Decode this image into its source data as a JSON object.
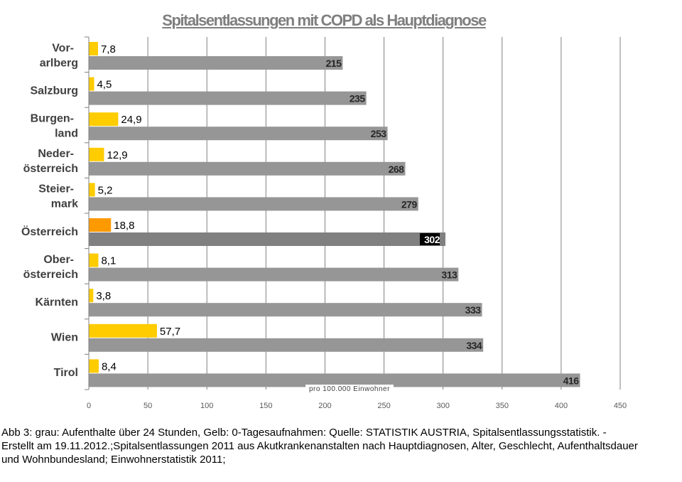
{
  "chart_data": {
    "type": "bar",
    "title": "Spitalsentlassungen mit COPD als Hauptdiagnose",
    "categories": [
      [
        "Vor-",
        "arlberg"
      ],
      [
        "Salzburg"
      ],
      [
        "Burgen-",
        "land"
      ],
      [
        "Neder-",
        "österreich"
      ],
      [
        "Steier-",
        "mark"
      ],
      [
        "Österreich"
      ],
      [
        "Ober-",
        "österreich"
      ],
      [
        "Kärnten"
      ],
      [
        "Wien"
      ],
      [
        "Tirol"
      ]
    ],
    "series": [
      {
        "color": "#ffcc00",
        "highlight_color": "#ff9900",
        "highlight_index": 5,
        "values": [
          7.8,
          4.5,
          24.9,
          12.9,
          5.2,
          18.8,
          8.1,
          3.8,
          57.7,
          8.4
        ],
        "labels": [
          "7,8",
          "4,5",
          "24,9",
          "12,9",
          "5,2",
          "18,8",
          "8,1",
          "3,8",
          "57,7",
          "8,4"
        ]
      },
      {
        "color": "#969696",
        "highlight_color": "#808080",
        "highlight_index": 5,
        "values": [
          215,
          235,
          253,
          268,
          279,
          302,
          313,
          333,
          334,
          416
        ],
        "labels": [
          "215",
          "235",
          "253",
          "268",
          "279",
          "302",
          "313",
          "333",
          "334",
          "416"
        ]
      }
    ],
    "xlim": [
      0,
      450
    ],
    "xticks": [
      0,
      50,
      100,
      150,
      200,
      250,
      300,
      350,
      400,
      450
    ],
    "xlabel": "pro 100.000 Einwohner",
    "grid": true,
    "orientation": "horizontal"
  },
  "footnote": "Abb 3: grau: Aufenthalte über 24 Stunden, Gelb: 0-Tagesaufnahmen: Quelle: STATISTIK AUSTRIA, Spitalsentlassungsstatistik. - Erstellt am 19.11.2012.;Spitalsentlassungen 2011 aus Akutkrankenanstalten nach Hauptdiagnosen, Alter, Geschlecht, Aufenthaltsdauer und Wohnbundesland; Einwohnerstatistik 2011;"
}
